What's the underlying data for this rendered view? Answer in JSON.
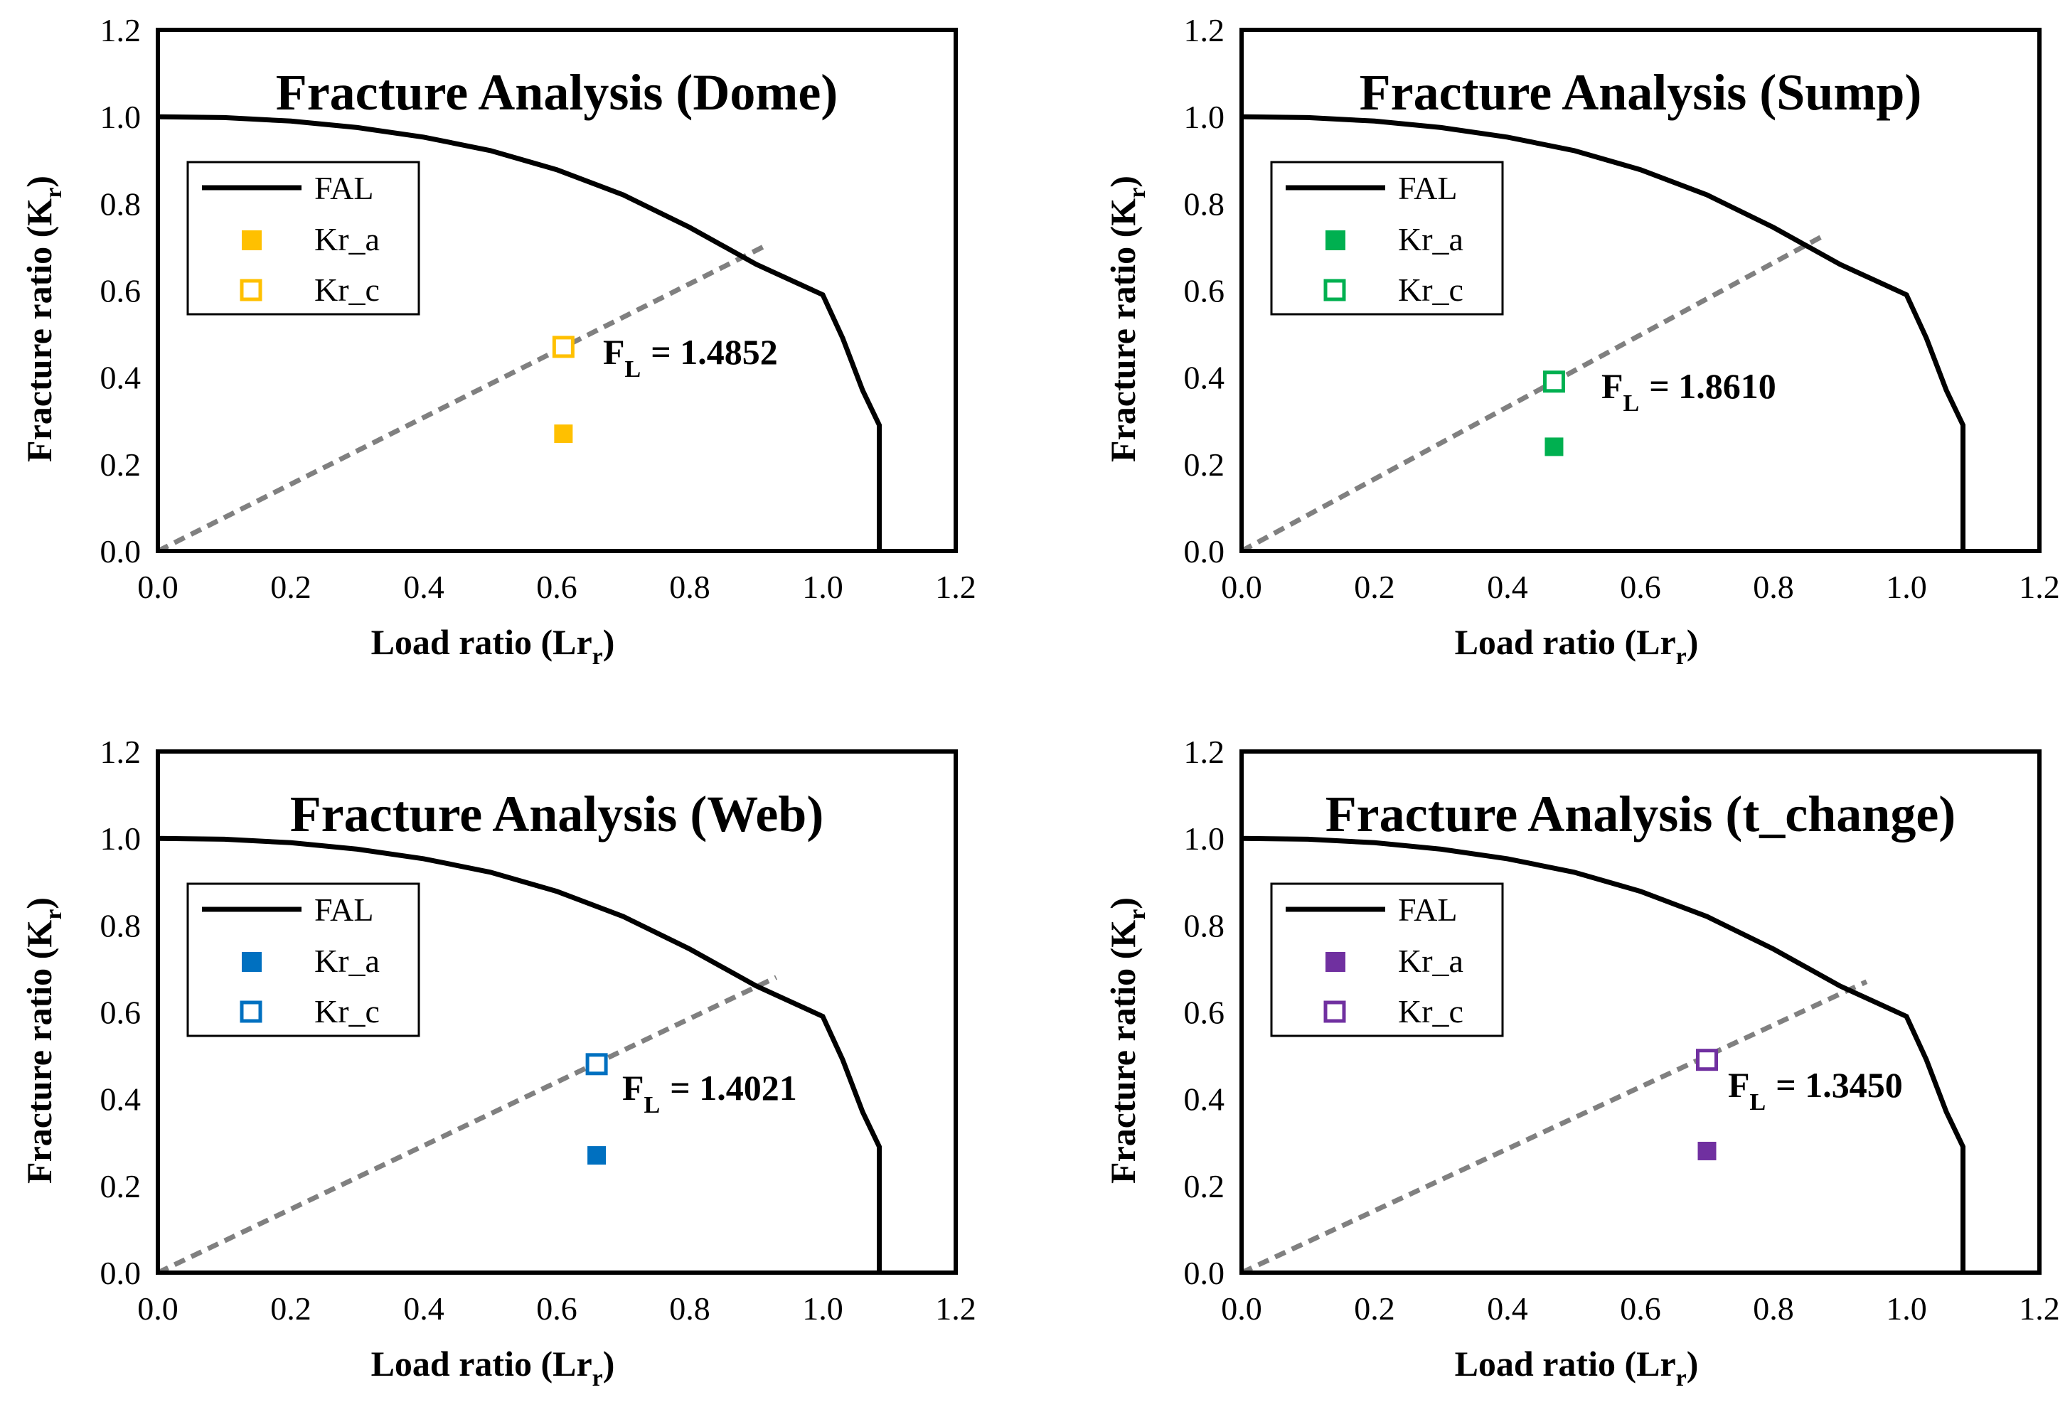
{
  "chart_data": [
    {
      "type": "scatter",
      "title": "Fracture Analysis (Dome)",
      "xlabel": "Load ratio (Lr)",
      "ylabel": "Fracture ratio (Kr)",
      "xlim": [
        0,
        1.2
      ],
      "ylim": [
        0,
        1.2
      ],
      "xticks": [
        "0.0",
        "0.2",
        "0.4",
        "0.6",
        "0.8",
        "1.0",
        "1.2"
      ],
      "yticks": [
        "0.0",
        "0.2",
        "0.4",
        "0.6",
        "0.8",
        "1.0",
        "1.2"
      ],
      "color": "#FFC000",
      "legend": [
        "FAL",
        "Kr_a",
        "Kr_c"
      ],
      "annotation": {
        "prefix": "F",
        "sub": "L",
        "value": "= 1.4852"
      },
      "kr_a": {
        "x": 0.61,
        "y": 0.27
      },
      "kr_c": {
        "x": 0.61,
        "y": 0.47
      },
      "fal_end": {
        "x": 0.91,
        "y": 0.7
      }
    },
    {
      "type": "scatter",
      "title": "Fracture Analysis (Sump)",
      "xlabel": "Load ratio (Lr)",
      "ylabel": "Fracture ratio (Kr)",
      "xlim": [
        0,
        1.2
      ],
      "ylim": [
        0,
        1.2
      ],
      "xticks": [
        "0.0",
        "0.2",
        "0.4",
        "0.6",
        "0.8",
        "1.0",
        "1.2"
      ],
      "yticks": [
        "0.0",
        "0.2",
        "0.4",
        "0.6",
        "0.8",
        "1.0",
        "1.2"
      ],
      "color": "#00B050",
      "legend": [
        "FAL",
        "Kr_a",
        "Kr_c"
      ],
      "annotation": {
        "prefix": "F",
        "sub": "L",
        "value": "= 1.8610"
      },
      "kr_a": {
        "x": 0.47,
        "y": 0.24
      },
      "kr_c": {
        "x": 0.47,
        "y": 0.39
      },
      "fal_end": {
        "x": 0.88,
        "y": 0.73
      }
    },
    {
      "type": "scatter",
      "title": "Fracture Analysis (Web)",
      "xlabel": "Load ratio (Lr)",
      "ylabel": "Fracture ratio (Kr)",
      "xlim": [
        0,
        1.2
      ],
      "ylim": [
        0,
        1.2
      ],
      "xticks": [
        "0.0",
        "0.2",
        "0.4",
        "0.6",
        "0.8",
        "1.0",
        "1.2"
      ],
      "yticks": [
        "0.0",
        "0.2",
        "0.4",
        "0.6",
        "0.8",
        "1.0",
        "1.2"
      ],
      "color": "#0070C0",
      "legend": [
        "FAL",
        "Kr_a",
        "Kr_c"
      ],
      "annotation": {
        "prefix": "F",
        "sub": "L",
        "value": "= 1.4021"
      },
      "kr_a": {
        "x": 0.66,
        "y": 0.27
      },
      "kr_c": {
        "x": 0.66,
        "y": 0.48
      },
      "fal_end": {
        "x": 0.93,
        "y": 0.68
      }
    },
    {
      "type": "scatter",
      "title": "Fracture Analysis (t_change)",
      "xlabel": "Load ratio (Lr)",
      "ylabel": "Fracture ratio (Kr)",
      "xlim": [
        0,
        1.2
      ],
      "ylim": [
        0,
        1.2
      ],
      "xticks": [
        "0.0",
        "0.2",
        "0.4",
        "0.6",
        "0.8",
        "1.0",
        "1.2"
      ],
      "yticks": [
        "0.0",
        "0.2",
        "0.4",
        "0.6",
        "0.8",
        "1.0",
        "1.2"
      ],
      "color": "#7030A0",
      "legend": [
        "FAL",
        "Kr_a",
        "Kr_c"
      ],
      "annotation": {
        "prefix": "F",
        "sub": "L",
        "value": "= 1.3450"
      },
      "kr_a": {
        "x": 0.7,
        "y": 0.28
      },
      "kr_c": {
        "x": 0.7,
        "y": 0.49
      },
      "fal_end": {
        "x": 0.94,
        "y": 0.67
      }
    }
  ],
  "fal_curve": {
    "lr_max": 1.085,
    "points": [
      [
        0.0,
        1.0
      ],
      [
        0.1,
        0.998
      ],
      [
        0.2,
        0.99
      ],
      [
        0.3,
        0.975
      ],
      [
        0.4,
        0.953
      ],
      [
        0.5,
        0.922
      ],
      [
        0.6,
        0.878
      ],
      [
        0.7,
        0.82
      ],
      [
        0.8,
        0.745
      ],
      [
        0.9,
        0.66
      ],
      [
        1.0,
        0.59
      ],
      [
        1.03,
        0.49
      ],
      [
        1.06,
        0.37
      ],
      [
        1.085,
        0.29
      ],
      [
        1.085,
        0.0
      ]
    ]
  },
  "colors": {
    "fal": "#000000",
    "projection_line": "#808080",
    "frame": "#000000"
  }
}
